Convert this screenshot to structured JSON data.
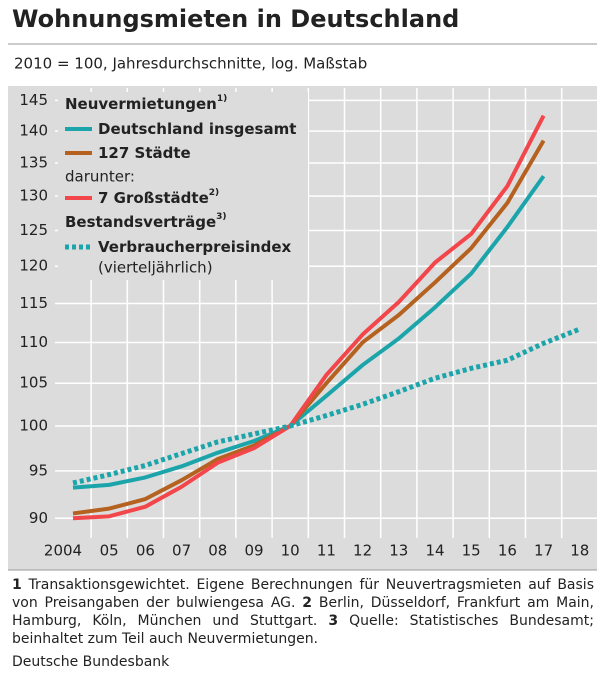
{
  "chart_data": {
    "type": "line",
    "title": "Wohnungsmieten in Deutschland",
    "subtitle": "2010 = 100, Jahresdurchschnitte, log. Maßstab",
    "categories": [
      "2004",
      "05",
      "06",
      "07",
      "08",
      "09",
      "10",
      "11",
      "12",
      "13",
      "14",
      "15",
      "16",
      "17",
      "18"
    ],
    "log_scale": true,
    "grid": true,
    "legend_position": "top-left",
    "ylim": [
      88.3,
      146.4
    ],
    "yticks": [
      90,
      95,
      100,
      105,
      110,
      115,
      120,
      125,
      130,
      135,
      140,
      145
    ],
    "legend_labels": {
      "new_rentals": "Neuvermietungen",
      "new_rentals_note": "1)",
      "of_which": "darunter:",
      "big_cities_note": "2)",
      "existing": "Bestandsverträge",
      "existing_note": "3)",
      "vpi_note": "(vierteljährlich)"
    },
    "series": [
      {
        "name": "Deutschland insgesamt",
        "color": "#1ba5ab",
        "style": "solid",
        "values": [
          93.2,
          93.5,
          94.3,
          95.5,
          97,
          98.3,
          100,
          103.5,
          107.2,
          110.5,
          114.5,
          119,
          125.5,
          133,
          null
        ]
      },
      {
        "name": "127 Städte",
        "color": "#b5611f",
        "style": "solid",
        "values": [
          90.5,
          91,
          92,
          94,
          96.3,
          97.8,
          100,
          105,
          110,
          113.5,
          117.8,
          122.5,
          129,
          138.5,
          null
        ]
      },
      {
        "name": "7 Großstädte",
        "color": "#f2464a",
        "style": "solid",
        "values": [
          90,
          90.2,
          91.2,
          93.3,
          95.9,
          97.5,
          100,
          106,
          111,
          115.2,
          120.5,
          124.5,
          131.5,
          142.5,
          null
        ]
      },
      {
        "name": "Verbraucherpreisindex",
        "color": "#1ba5ab",
        "style": "dotted",
        "values": [
          93.7,
          94.6,
          95.6,
          96.9,
          98.2,
          99.1,
          100,
          101.2,
          102.5,
          104,
          105.6,
          106.8,
          107.8,
          109.9,
          111.7
        ]
      }
    ],
    "notes": [
      {
        "num": "1",
        "text": "Transaktionsgewichtet. Eigene Berechnungen für Neuvertragsmieten auf Basis von Preisangaben der bulwiengesa AG."
      },
      {
        "num": "2",
        "text": "Berlin, Düsseldorf, Frankfurt am Main, Hamburg, Köln, München und Stuttgart."
      },
      {
        "num": "3",
        "text": "Quelle: Statistisches Bundesamt; beinhaltet zum Teil auch Neuvermietungen."
      }
    ],
    "source": "Deutsche Bundesbank"
  }
}
